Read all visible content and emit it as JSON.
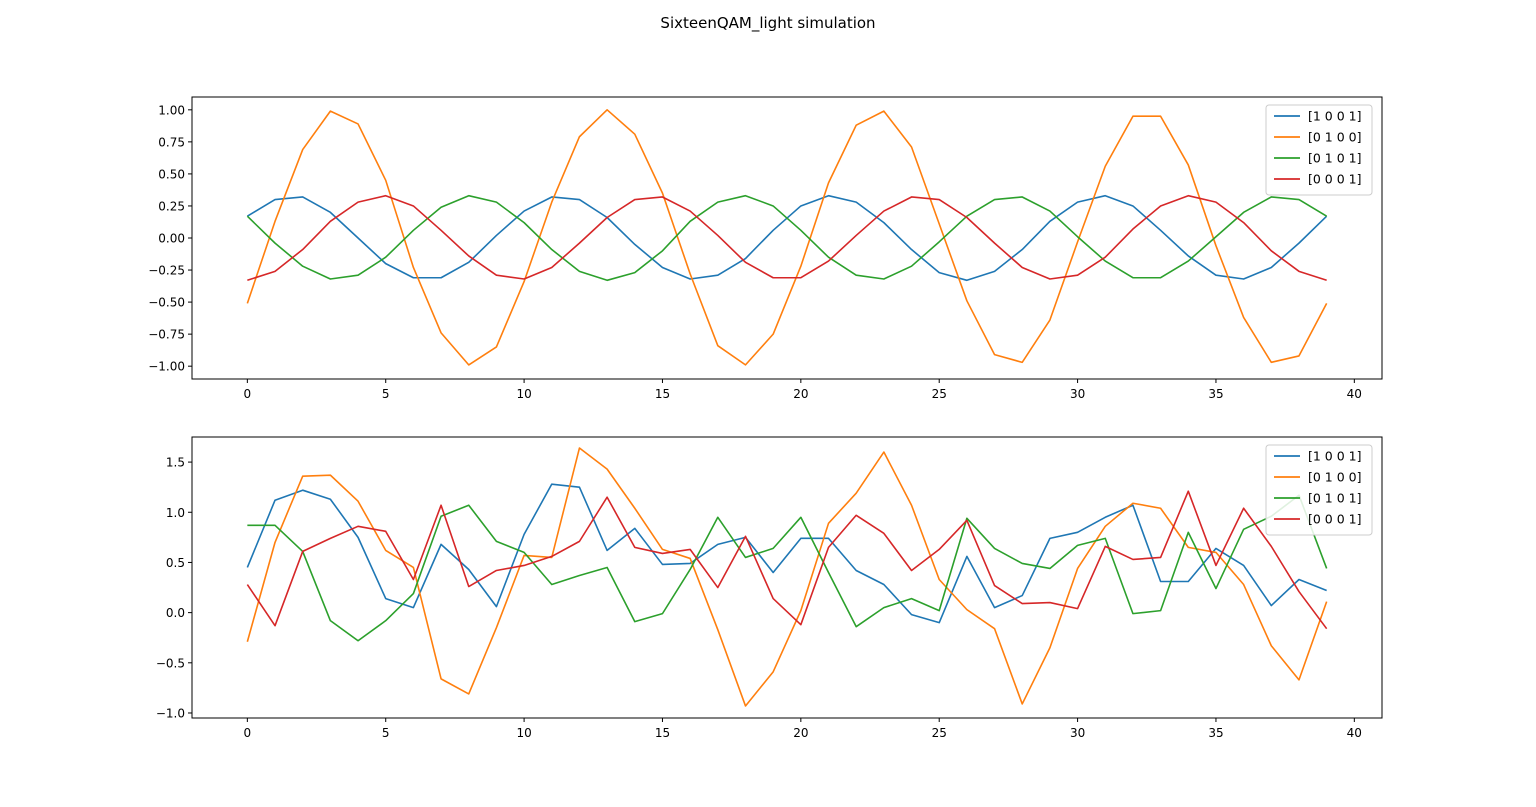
{
  "figure": {
    "title": "SixteenQAM_light simulation"
  },
  "chart_data": [
    {
      "type": "line",
      "title": "",
      "xlabel": "",
      "ylabel": "",
      "xlim": [
        -2,
        41
      ],
      "ylim": [
        -1.1,
        1.1
      ],
      "xticks": [
        0,
        5,
        10,
        15,
        20,
        25,
        30,
        35,
        40
      ],
      "xtick_labels": [
        "0",
        "5",
        "10",
        "15",
        "20",
        "25",
        "30",
        "35",
        "40"
      ],
      "yticks": [
        1.0,
        0.75,
        0.5,
        0.25,
        0.0,
        -0.25,
        -0.5,
        -0.75,
        -1.0
      ],
      "ytick_labels": [
        "1.00",
        "0.75",
        "0.50",
        "0.25",
        "0.00",
        "−0.25",
        "−0.50",
        "−0.75",
        "−1.00"
      ],
      "grid": false,
      "legend_position": "top-right",
      "series": [
        {
          "name": "[1 0 0 1]",
          "color": "#1f77b4",
          "values": [
            0.17,
            0.3,
            0.32,
            0.2,
            0.0,
            -0.2,
            -0.31,
            -0.31,
            -0.19,
            0.02,
            0.21,
            0.32,
            0.3,
            0.16,
            -0.05,
            -0.23,
            -0.32,
            -0.29,
            -0.16,
            0.06,
            0.25,
            0.33,
            0.28,
            0.12,
            -0.09,
            -0.27,
            -0.33,
            -0.26,
            -0.09,
            0.13,
            0.28,
            0.33,
            0.25,
            0.06,
            -0.14,
            -0.29,
            -0.32,
            -0.23,
            -0.04,
            0.17
          ]
        },
        {
          "name": "[0 1 0 0]",
          "color": "#ff7f0e",
          "values": [
            -0.51,
            0.13,
            0.69,
            0.99,
            0.89,
            0.45,
            -0.23,
            -0.74,
            -0.99,
            -0.85,
            -0.34,
            0.28,
            0.79,
            1.0,
            0.81,
            0.35,
            -0.28,
            -0.84,
            -0.99,
            -0.75,
            -0.22,
            0.43,
            0.88,
            0.99,
            0.71,
            0.11,
            -0.49,
            -0.91,
            -0.97,
            -0.64,
            -0.03,
            0.56,
            0.95,
            0.95,
            0.57,
            -0.06,
            -0.62,
            -0.97,
            -0.92,
            -0.51
          ]
        },
        {
          "name": "[0 1 0 1]",
          "color": "#2ca02c",
          "values": [
            0.17,
            -0.04,
            -0.22,
            -0.32,
            -0.29,
            -0.15,
            0.06,
            0.24,
            0.33,
            0.28,
            0.12,
            -0.09,
            -0.26,
            -0.33,
            -0.27,
            -0.1,
            0.13,
            0.28,
            0.33,
            0.25,
            0.06,
            -0.15,
            -0.29,
            -0.32,
            -0.22,
            -0.03,
            0.17,
            0.3,
            0.32,
            0.21,
            0.01,
            -0.18,
            -0.31,
            -0.31,
            -0.18,
            0.01,
            0.2,
            0.32,
            0.3,
            0.17
          ]
        },
        {
          "name": "[0 0 0 1]",
          "color": "#d62728",
          "values": [
            -0.33,
            -0.26,
            -0.09,
            0.13,
            0.28,
            0.33,
            0.25,
            0.06,
            -0.14,
            -0.29,
            -0.32,
            -0.23,
            -0.04,
            0.16,
            0.3,
            0.32,
            0.21,
            0.02,
            -0.19,
            -0.31,
            -0.31,
            -0.18,
            0.02,
            0.21,
            0.32,
            0.3,
            0.16,
            -0.04,
            -0.23,
            -0.32,
            -0.29,
            -0.15,
            0.07,
            0.25,
            0.33,
            0.28,
            0.12,
            -0.1,
            -0.26,
            -0.33
          ]
        }
      ]
    },
    {
      "type": "line",
      "title": "",
      "xlabel": "",
      "ylabel": "",
      "xlim": [
        -2,
        41
      ],
      "ylim": [
        -1.05,
        1.75
      ],
      "xticks": [
        0,
        5,
        10,
        15,
        20,
        25,
        30,
        35,
        40
      ],
      "xtick_labels": [
        "0",
        "5",
        "10",
        "15",
        "20",
        "25",
        "30",
        "35",
        "40"
      ],
      "yticks": [
        1.5,
        1.0,
        0.5,
        0.0,
        -0.5,
        -1.0
      ],
      "ytick_labels": [
        "1.5",
        "1.0",
        "0.5",
        "0.0",
        "−0.5",
        "−1.0"
      ],
      "grid": false,
      "legend_position": "top-right",
      "series": [
        {
          "name": "[1 0 0 1]",
          "color": "#1f77b4",
          "values": [
            0.45,
            1.12,
            1.22,
            1.13,
            0.75,
            0.14,
            0.05,
            0.68,
            0.43,
            0.06,
            0.78,
            1.28,
            1.25,
            0.62,
            0.84,
            0.48,
            0.49,
            0.68,
            0.75,
            0.4,
            0.74,
            0.74,
            0.42,
            0.28,
            -0.02,
            -0.1,
            0.56,
            0.05,
            0.17,
            0.74,
            0.8,
            0.95,
            1.07,
            0.31,
            0.31,
            0.64,
            0.47,
            0.07,
            0.33,
            0.22
          ]
        },
        {
          "name": "[0 1 0 0]",
          "color": "#ff7f0e",
          "values": [
            -0.29,
            0.7,
            1.36,
            1.37,
            1.11,
            0.62,
            0.45,
            -0.66,
            -0.81,
            -0.15,
            0.57,
            0.55,
            1.64,
            1.43,
            1.04,
            0.63,
            0.54,
            -0.17,
            -0.93,
            -0.59,
            0.02,
            0.89,
            1.19,
            1.6,
            1.07,
            0.33,
            0.03,
            -0.16,
            -0.91,
            -0.35,
            0.44,
            0.86,
            1.09,
            1.04,
            0.65,
            0.6,
            0.28,
            -0.33,
            -0.67,
            0.11
          ]
        },
        {
          "name": "[0 1 0 1]",
          "color": "#2ca02c",
          "values": [
            0.87,
            0.87,
            0.61,
            -0.08,
            -0.28,
            -0.08,
            0.19,
            0.96,
            1.07,
            0.71,
            0.6,
            0.28,
            0.37,
            0.45,
            -0.09,
            -0.01,
            0.43,
            0.95,
            0.55,
            0.64,
            0.95,
            0.4,
            -0.14,
            0.05,
            0.14,
            0.02,
            0.94,
            0.64,
            0.49,
            0.44,
            0.67,
            0.74,
            -0.01,
            0.02,
            0.8,
            0.24,
            0.83,
            0.96,
            1.17,
            0.44
          ]
        },
        {
          "name": "[0 0 0 1]",
          "color": "#d62728",
          "values": [
            0.28,
            -0.13,
            0.61,
            0.74,
            0.86,
            0.81,
            0.33,
            1.07,
            0.26,
            0.42,
            0.47,
            0.56,
            0.71,
            1.15,
            0.65,
            0.59,
            0.63,
            0.25,
            0.76,
            0.14,
            -0.12,
            0.65,
            0.97,
            0.79,
            0.42,
            0.63,
            0.92,
            0.27,
            0.09,
            0.1,
            0.04,
            0.66,
            0.53,
            0.55,
            1.21,
            0.47,
            1.04,
            0.66,
            0.21,
            -0.16
          ]
        }
      ]
    }
  ]
}
